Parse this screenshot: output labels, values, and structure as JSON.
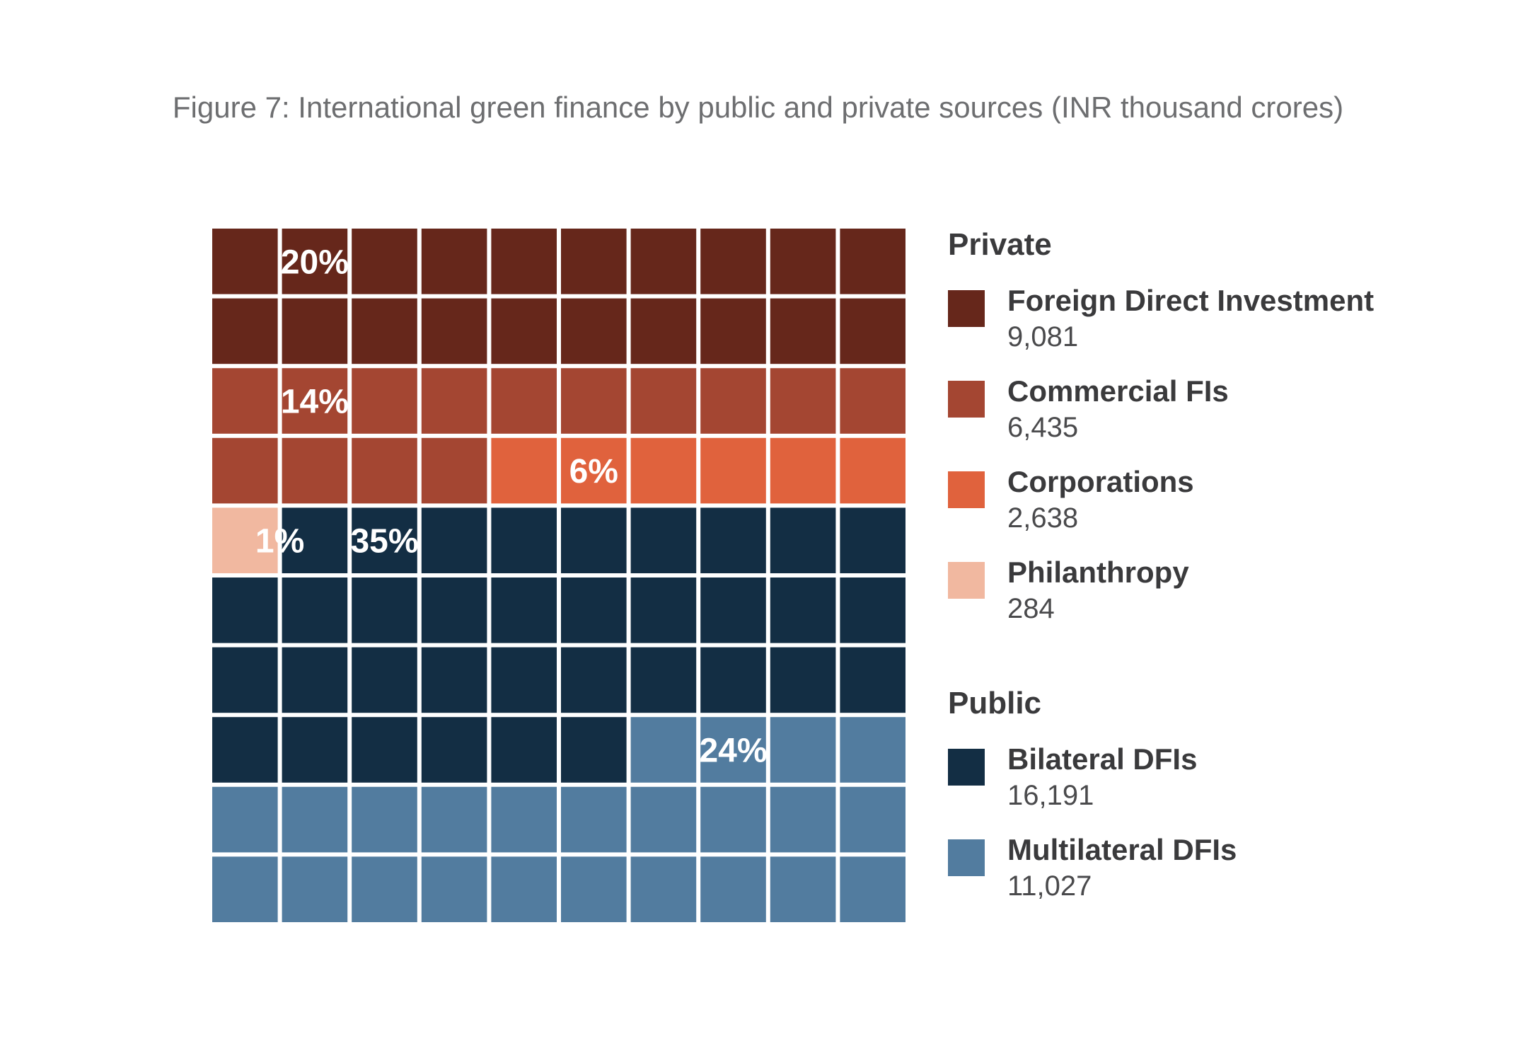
{
  "chart_data": {
    "type": "waffle",
    "title": "Figure 7: International green finance by public and private sources (INR thousand crores)",
    "grid": {
      "rows": 10,
      "cols": 10
    },
    "groups": [
      {
        "name": "Private",
        "series": [
          {
            "name": "Foreign Direct Investment",
            "value": 9081,
            "value_label": "9,081",
            "share_pct": 20,
            "pct_label": "20%",
            "color": "#66271b"
          },
          {
            "name": "Commercial FIs",
            "value": 6435,
            "value_label": "6,435",
            "share_pct": 14,
            "pct_label": "14%",
            "color": "#a44632"
          },
          {
            "name": "Corporations",
            "value": 2638,
            "value_label": "2,638",
            "share_pct": 6,
            "pct_label": "6%",
            "color": "#e0623d"
          },
          {
            "name": "Philanthropy",
            "value": 284,
            "value_label": "284",
            "share_pct": 1,
            "pct_label": "1%",
            "color": "#f1b8a0"
          }
        ]
      },
      {
        "name": "Public",
        "series": [
          {
            "name": "Bilateral DFIs",
            "value": 16191,
            "value_label": "16,191",
            "share_pct": 35,
            "pct_label": "35%",
            "color": "#132e44"
          },
          {
            "name": "Multilateral DFIs",
            "value": 11027,
            "value_label": "11,027",
            "share_pct": 24,
            "pct_label": "24%",
            "color": "#527c9f"
          }
        ]
      }
    ],
    "fill_order": [
      "Foreign Direct Investment",
      "Commercial FIs",
      "Corporations",
      "Philanthropy",
      "Bilateral DFIs",
      "Multilateral DFIs"
    ],
    "cell_counts": [
      20,
      14,
      6,
      1,
      35,
      24
    ],
    "label_positions": [
      {
        "series": "Foreign Direct Investment",
        "row": 0,
        "col": 1
      },
      {
        "series": "Commercial FIs",
        "row": 2,
        "col": 1
      },
      {
        "series": "Corporations",
        "row": 3,
        "col": 5
      },
      {
        "series": "Philanthropy",
        "row": 4,
        "col": 0.5
      },
      {
        "series": "Bilateral DFIs",
        "row": 4,
        "col": 2
      },
      {
        "series": "Multilateral DFIs",
        "row": 7,
        "col": 7
      }
    ],
    "legend_position": "right"
  }
}
